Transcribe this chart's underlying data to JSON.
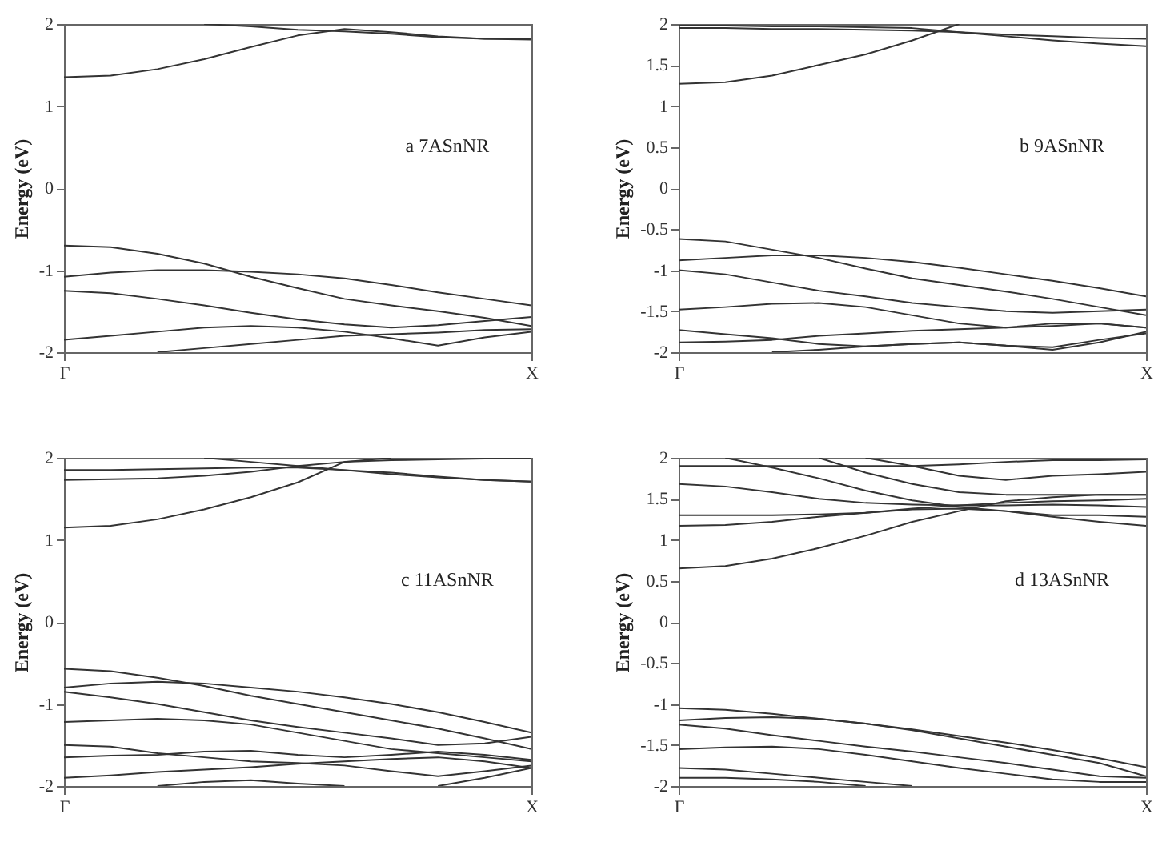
{
  "chart_data": [
    {
      "type": "line",
      "ylabel": "Energy (eV)",
      "annotations": [
        "a 7ASnNR"
      ],
      "categories": [
        "Γ",
        null,
        null,
        null,
        null,
        null,
        null,
        null,
        null,
        null,
        "X"
      ],
      "ylim": [
        -2,
        2
      ],
      "yticks": [
        -2,
        -1,
        0,
        1,
        2
      ],
      "grid": false,
      "legend": false,
      "series": [
        {
          "color": "#333333",
          "values": [
            1.35,
            1.37,
            1.45,
            1.57,
            1.72,
            1.86,
            1.94,
            1.9,
            1.85,
            1.82,
            1.82
          ]
        },
        {
          "color": "#333333",
          "values": [
            null,
            null,
            null,
            2,
            1.97,
            1.93,
            1.91,
            1.88,
            1.84,
            1.82,
            1.81
          ]
        },
        {
          "color": "#333333",
          "values": [
            -0.7,
            -0.72,
            -0.8,
            -0.92,
            -1.08,
            -1.22,
            -1.35,
            -1.43,
            -1.5,
            -1.58,
            -1.68
          ]
        },
        {
          "color": "#333333",
          "values": [
            -1.08,
            -1.03,
            -1,
            -1,
            -1.02,
            -1.05,
            -1.1,
            -1.18,
            -1.27,
            -1.35,
            -1.43
          ]
        },
        {
          "color": "#333333",
          "values": [
            -1.25,
            -1.28,
            -1.35,
            -1.43,
            -1.52,
            -1.6,
            -1.66,
            -1.7,
            -1.67,
            -1.62,
            -1.57
          ]
        },
        {
          "color": "#333333",
          "values": [
            -1.85,
            -1.8,
            -1.75,
            -1.7,
            -1.68,
            -1.7,
            -1.75,
            -1.83,
            -1.92,
            -1.82,
            -1.75
          ]
        },
        {
          "color": "#333333",
          "values": [
            null,
            null,
            -2,
            -1.95,
            -1.9,
            -1.85,
            -1.8,
            -1.78,
            -1.76,
            -1.73,
            -1.72
          ]
        }
      ]
    },
    {
      "type": "line",
      "ylabel": "Energy (eV)",
      "annotations": [
        "b 9ASnNR"
      ],
      "categories": [
        "Γ",
        null,
        null,
        null,
        null,
        null,
        null,
        null,
        null,
        null,
        "X"
      ],
      "ylim": [
        -2,
        2
      ],
      "yticks": [
        -2,
        -1.5,
        -1,
        -0.5,
        0,
        0.5,
        1,
        1.5,
        2
      ],
      "grid": false,
      "legend": false,
      "series": [
        {
          "color": "#333333",
          "values": [
            1.27,
            1.29,
            1.37,
            1.5,
            1.63,
            1.8,
            2,
            null,
            null,
            null,
            null
          ]
        },
        {
          "color": "#333333",
          "values": [
            1.98,
            1.98,
            1.97,
            1.97,
            1.96,
            1.95,
            1.9,
            1.85,
            1.8,
            1.76,
            1.73
          ]
        },
        {
          "color": "#333333",
          "values": [
            1.95,
            1.95,
            1.94,
            1.94,
            1.93,
            1.92,
            1.9,
            1.87,
            1.85,
            1.83,
            1.82
          ]
        },
        {
          "color": "#333333",
          "values": [
            -0.62,
            -0.65,
            -0.75,
            -0.85,
            -0.98,
            -1.1,
            -1.18,
            -1.26,
            -1.35,
            -1.45,
            -1.55
          ]
        },
        {
          "color": "#333333",
          "values": [
            -0.88,
            -0.85,
            -0.82,
            -0.82,
            -0.85,
            -0.9,
            -0.97,
            -1.05,
            -1.13,
            -1.22,
            -1.32
          ]
        },
        {
          "color": "#333333",
          "values": [
            -1,
            -1.05,
            -1.15,
            -1.25,
            -1.32,
            -1.4,
            -1.45,
            -1.5,
            -1.52,
            -1.5,
            -1.48
          ]
        },
        {
          "color": "#333333",
          "values": [
            -1.48,
            -1.45,
            -1.41,
            -1.4,
            -1.45,
            -1.55,
            -1.65,
            -1.7,
            -1.68,
            -1.65,
            -1.7
          ]
        },
        {
          "color": "#333333",
          "values": [
            -1.73,
            -1.78,
            -1.83,
            -1.9,
            -1.93,
            -1.9,
            -1.88,
            -1.92,
            -1.97,
            -1.88,
            -1.75
          ]
        },
        {
          "color": "#333333",
          "values": [
            -1.88,
            -1.87,
            -1.85,
            -1.8,
            -1.77,
            -1.74,
            -1.72,
            -1.7,
            -1.65,
            -1.65,
            -1.7
          ]
        },
        {
          "color": "#333333",
          "values": [
            null,
            null,
            -2,
            -1.97,
            -1.93,
            -1.9,
            -1.88,
            -1.92,
            -1.94,
            -1.85,
            -1.77
          ]
        }
      ]
    },
    {
      "type": "line",
      "ylabel": "Energy (eV)",
      "annotations": [
        "c 11ASnNR"
      ],
      "categories": [
        "Γ",
        null,
        null,
        null,
        null,
        null,
        null,
        null,
        null,
        null,
        "X"
      ],
      "ylim": [
        -2,
        2
      ],
      "yticks": [
        -2,
        -1,
        0,
        1,
        2
      ],
      "grid": false,
      "legend": false,
      "series": [
        {
          "color": "#333333",
          "values": [
            1.15,
            1.17,
            1.25,
            1.37,
            1.52,
            1.7,
            1.95,
            2,
            null,
            null,
            null
          ]
        },
        {
          "color": "#333333",
          "values": [
            1.85,
            1.85,
            1.86,
            1.87,
            1.88,
            1.88,
            1.85,
            1.82,
            1.77,
            1.73,
            1.71
          ]
        },
        {
          "color": "#333333",
          "values": [
            1.73,
            1.74,
            1.75,
            1.78,
            1.83,
            1.9,
            1.95,
            1.97,
            1.98,
            1.99,
            2
          ]
        },
        {
          "color": "#333333",
          "values": [
            null,
            null,
            null,
            2,
            1.95,
            1.9,
            1.85,
            1.8,
            1.76,
            1.73,
            1.71
          ]
        },
        {
          "color": "#333333",
          "values": [
            -0.57,
            -0.6,
            -0.68,
            -0.78,
            -0.9,
            -1,
            -1.1,
            -1.2,
            -1.3,
            -1.42,
            -1.55
          ]
        },
        {
          "color": "#333333",
          "values": [
            -0.8,
            -0.75,
            -0.73,
            -0.75,
            -0.8,
            -0.85,
            -0.92,
            -1,
            -1.1,
            -1.22,
            -1.35
          ]
        },
        {
          "color": "#333333",
          "values": [
            -0.85,
            -0.92,
            -1,
            -1.1,
            -1.2,
            -1.28,
            -1.35,
            -1.42,
            -1.5,
            -1.48,
            -1.4
          ]
        },
        {
          "color": "#333333",
          "values": [
            -1.22,
            -1.2,
            -1.18,
            -1.2,
            -1.25,
            -1.35,
            -1.45,
            -1.55,
            -1.6,
            -1.65,
            -1.7
          ]
        },
        {
          "color": "#333333",
          "values": [
            -1.5,
            -1.52,
            -1.6,
            -1.65,
            -1.7,
            -1.72,
            -1.75,
            -1.82,
            -1.88,
            -1.82,
            -1.75
          ]
        },
        {
          "color": "#333333",
          "values": [
            -1.65,
            -1.63,
            -1.62,
            -1.58,
            -1.57,
            -1.62,
            -1.65,
            -1.62,
            -1.58,
            -1.62,
            -1.68
          ]
        },
        {
          "color": "#333333",
          "values": [
            -1.9,
            -1.87,
            -1.83,
            -1.8,
            -1.77,
            -1.73,
            -1.7,
            -1.67,
            -1.65,
            -1.7,
            -1.78
          ]
        },
        {
          "color": "#333333",
          "values": [
            null,
            null,
            -2,
            -1.95,
            -1.93,
            -1.97,
            -2,
            null,
            null,
            null,
            null
          ]
        },
        {
          "color": "#333333",
          "values": [
            null,
            null,
            null,
            null,
            null,
            null,
            null,
            null,
            -2,
            -1.9,
            -1.78
          ]
        }
      ]
    },
    {
      "type": "line",
      "ylabel": "Energy (eV)",
      "annotations": [
        "d 13ASnNR"
      ],
      "categories": [
        "Γ",
        null,
        null,
        null,
        null,
        null,
        null,
        null,
        null,
        null,
        "X"
      ],
      "ylim": [
        -2,
        2
      ],
      "yticks": [
        -2,
        -1.5,
        -1,
        -0.5,
        0,
        0.5,
        1,
        1.5,
        2
      ],
      "grid": false,
      "legend": false,
      "series": [
        {
          "color": "#333333",
          "values": [
            0.65,
            0.68,
            0.77,
            0.9,
            1.05,
            1.22,
            1.35,
            1.47,
            1.52,
            1.55,
            1.55
          ]
        },
        {
          "color": "#333333",
          "values": [
            1.17,
            1.18,
            1.22,
            1.28,
            1.33,
            1.38,
            1.42,
            1.45,
            1.47,
            1.48,
            1.5
          ]
        },
        {
          "color": "#333333",
          "values": [
            1.3,
            1.3,
            1.3,
            1.31,
            1.33,
            1.37,
            1.38,
            1.35,
            1.3,
            1.3,
            1.28
          ]
        },
        {
          "color": "#333333",
          "values": [
            1.68,
            1.65,
            1.58,
            1.5,
            1.45,
            1.43,
            1.42,
            1.42,
            1.43,
            1.42,
            1.4
          ]
        },
        {
          "color": "#333333",
          "values": [
            null,
            2,
            1.88,
            1.75,
            1.6,
            1.48,
            1.4,
            1.35,
            1.28,
            1.22,
            1.17
          ]
        },
        {
          "color": "#333333",
          "values": [
            null,
            null,
            null,
            2,
            1.82,
            1.68,
            1.58,
            1.55,
            1.55,
            1.55,
            1.55
          ]
        },
        {
          "color": "#333333",
          "values": [
            null,
            null,
            null,
            null,
            2,
            1.9,
            1.78,
            1.73,
            1.78,
            1.8,
            1.83
          ]
        },
        {
          "color": "#333333",
          "values": [
            1.9,
            1.9,
            1.9,
            1.9,
            1.9,
            1.9,
            1.92,
            1.95,
            1.97,
            1.97,
            1.98
          ]
        },
        {
          "color": "#333333",
          "values": [
            -1.05,
            -1.07,
            -1.12,
            -1.18,
            -1.24,
            -1.31,
            -1.39,
            -1.47,
            -1.56,
            -1.66,
            -1.77
          ]
        },
        {
          "color": "#333333",
          "values": [
            -1.2,
            -1.17,
            -1.16,
            -1.18,
            -1.24,
            -1.32,
            -1.42,
            -1.52,
            -1.62,
            -1.72,
            -1.88
          ]
        },
        {
          "color": "#333333",
          "values": [
            -1.25,
            -1.3,
            -1.38,
            -1.45,
            -1.52,
            -1.58,
            -1.65,
            -1.72,
            -1.8,
            -1.88,
            -1.9
          ]
        },
        {
          "color": "#333333",
          "values": [
            -1.55,
            -1.53,
            -1.52,
            -1.55,
            -1.62,
            -1.7,
            -1.78,
            -1.85,
            -1.92,
            -1.95,
            -1.95
          ]
        },
        {
          "color": "#333333",
          "values": [
            -1.78,
            -1.8,
            -1.85,
            -1.9,
            -1.95,
            -2,
            null,
            null,
            null,
            null,
            null
          ]
        },
        {
          "color": "#333333",
          "values": [
            -1.9,
            -1.9,
            -1.92,
            -1.95,
            -2,
            null,
            null,
            null,
            null,
            null,
            null
          ]
        }
      ]
    }
  ]
}
